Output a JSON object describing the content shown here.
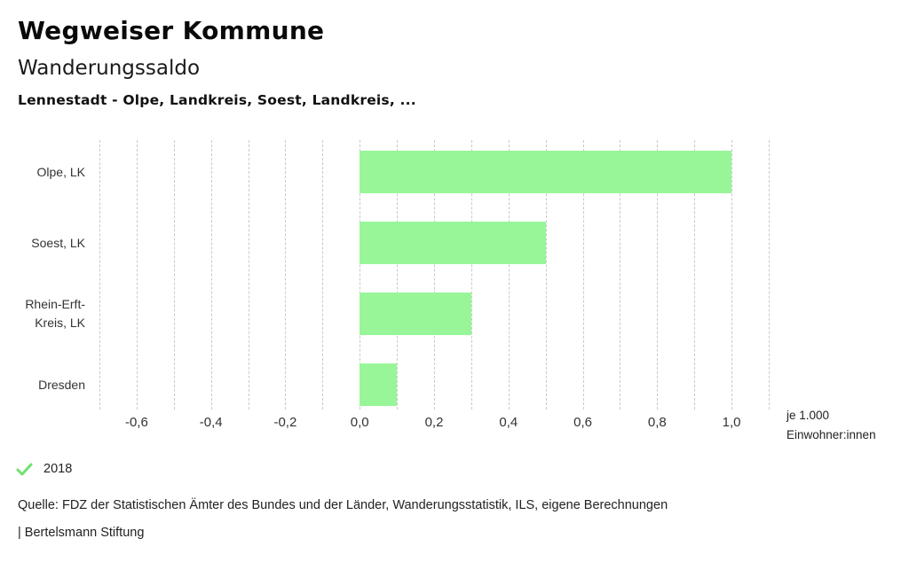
{
  "header": {
    "title": "Wegweiser Kommune",
    "subtitle": "Wanderungssaldo",
    "selection": "Lennestadt - Olpe, Landkreis, Soest, Landkreis, ..."
  },
  "chart_data": {
    "type": "bar",
    "orientation": "horizontal",
    "title": "Wanderungssaldo",
    "categories": [
      "Olpe, LK",
      "Soest, LK",
      "Rhein-Erft-Kreis, LK",
      "Dresden"
    ],
    "categories_lines": [
      [
        "Olpe, LK"
      ],
      [
        "Soest, LK"
      ],
      [
        "Rhein-Erft-",
        "Kreis, LK"
      ],
      [
        "Dresden"
      ]
    ],
    "values": [
      1.0,
      0.5,
      0.3,
      0.1
    ],
    "series_label": "2018",
    "xlabel": "je 1.000 Einwohner:innen",
    "xlim": [
      -0.7,
      1.1
    ],
    "x_ticks": [
      -0.6,
      -0.4,
      -0.2,
      0.0,
      0.2,
      0.4,
      0.6,
      0.8,
      1.0
    ],
    "x_tick_labels": [
      "-0,6",
      "-0,4",
      "-0,2",
      "0,0",
      "0,2",
      "0,4",
      "0,6",
      "0,8",
      "1,0"
    ],
    "gridline_step": 0.1,
    "grid": true,
    "bar_color": "#98f698",
    "gridline_color": "#c9c9c9",
    "legend_position": "bottom-left"
  },
  "axis_unit": {
    "line1": "je 1.000",
    "line2": "Einwohner:innen"
  },
  "legend": {
    "icon": "check-icon",
    "check_color": "#70e170",
    "label": "2018"
  },
  "footer": {
    "source": "Quelle: FDZ der Statistischen Ämter des Bundes und der Länder, Wanderungsstatistik, ILS, eigene Berechnungen",
    "attribution": "| Bertelsmann Stiftung"
  }
}
